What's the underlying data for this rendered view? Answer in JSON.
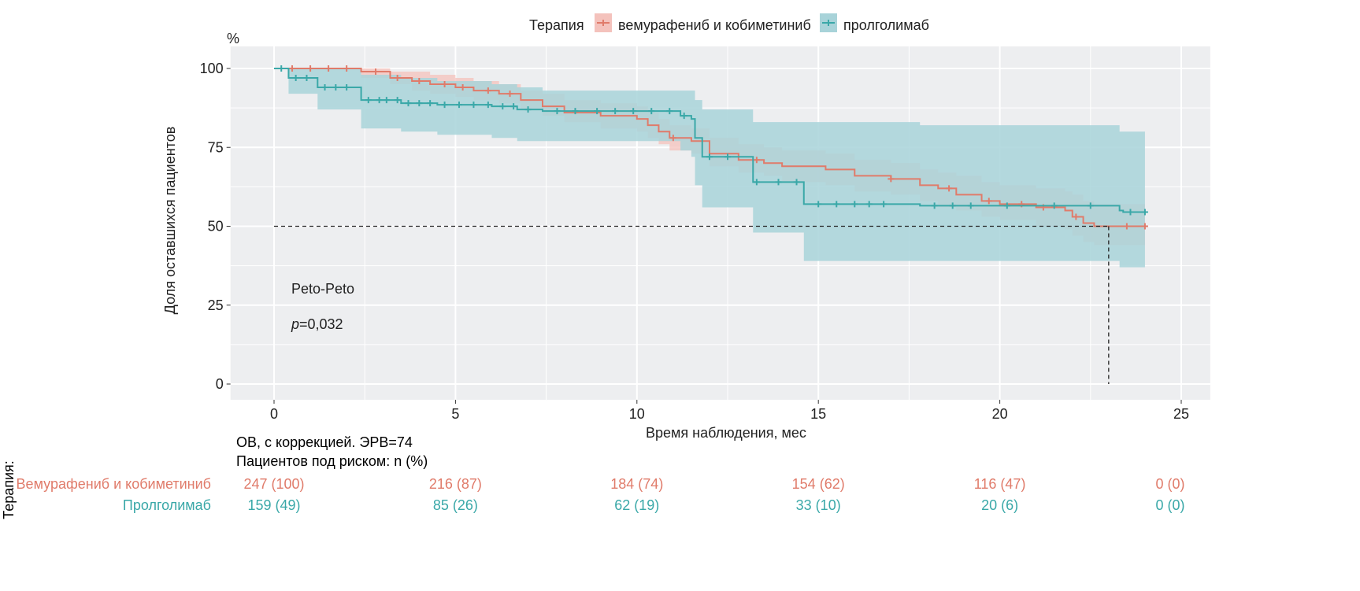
{
  "chart_data": {
    "type": "line",
    "subtype": "kaplan-meier",
    "xlabel": "Время наблюдения, мес",
    "ylabel": "Доля оставшихся пациентов",
    "yunit": "%",
    "xlim": [
      -1.2,
      25.8
    ],
    "ylim": [
      -5,
      107
    ],
    "xticks": [
      0,
      5,
      10,
      15,
      20,
      25
    ],
    "yticks": [
      0,
      25,
      50,
      75,
      100
    ],
    "grid": true,
    "legend": {
      "title": "Терапия",
      "placement": "top",
      "entries": [
        "вемурафениб и кобиметиниб",
        "пролголимаб"
      ]
    },
    "annotation": {
      "test": "Peto-Peto",
      "p_label": "p",
      "p_value": "=0,032"
    },
    "median_line": {
      "y": 50,
      "x": 23
    },
    "series": [
      {
        "name": "вемурафениб и кобиметиниб",
        "color": "#E07B6A",
        "band_color": "#F4C2BC",
        "x": [
          0,
          2.4,
          3.2,
          3.8,
          4.3,
          5,
          5.5,
          6.2,
          6.8,
          7.4,
          8,
          9,
          10,
          10.3,
          10.6,
          10.9,
          11.5,
          12,
          12.8,
          13.5,
          14,
          15.2,
          16,
          17,
          17.8,
          18.3,
          18.8,
          19.5,
          20,
          21,
          21.8,
          22,
          22.3,
          22.6,
          24
        ],
        "y": [
          100,
          99,
          97,
          96,
          95,
          94,
          93,
          92,
          90,
          88,
          86,
          85,
          84,
          82,
          80,
          78,
          77,
          73,
          71,
          70,
          69,
          68,
          66,
          65,
          63,
          62,
          60,
          58,
          57,
          56,
          55,
          53,
          51,
          50,
          50
        ],
        "lower": [
          100,
          97,
          95,
          93,
          92,
          91,
          90,
          89,
          87,
          85,
          83,
          81,
          80,
          78,
          76,
          74,
          73,
          69,
          67,
          66,
          64,
          63,
          61,
          60,
          58,
          56,
          55,
          53,
          52,
          50,
          49,
          47,
          45,
          44,
          44
        ],
        "upper": [
          100,
          100,
          99,
          99,
          98,
          97,
          96,
          95,
          93,
          92,
          90,
          89,
          88,
          86,
          84,
          82,
          81,
          78,
          76,
          75,
          74,
          73,
          71,
          70,
          68,
          67,
          66,
          64,
          63,
          62,
          61,
          60,
          58,
          57,
          57
        ],
        "censor": [
          0.5,
          1,
          1.5,
          2,
          2.8,
          3.4,
          4,
          4.7,
          5.2,
          5.9,
          6.5,
          11,
          13.3,
          17,
          18.6,
          19.7,
          20.6,
          21.2,
          22.1,
          23.5,
          24
        ]
      },
      {
        "name": "пролголимаб",
        "color": "#3AA8A8",
        "band_color": "#A8D3D9",
        "x": [
          0,
          0.4,
          1.2,
          2.4,
          3.5,
          4.5,
          6,
          6.7,
          7.4,
          11.2,
          11.5,
          11.6,
          11.8,
          13.2,
          14.6,
          17.8,
          23,
          23.3,
          23.4,
          24
        ],
        "y": [
          100,
          97,
          94,
          90,
          89,
          88.5,
          88,
          87,
          86.5,
          85,
          84,
          78,
          72,
          64,
          57,
          56.5,
          56.5,
          55,
          54.5,
          54.5
        ],
        "lower": [
          100,
          92,
          87,
          81,
          80,
          79,
          78,
          77,
          77,
          74,
          72,
          63,
          56,
          48,
          39,
          39,
          39,
          37,
          37,
          37
        ],
        "upper": [
          100,
          100,
          100,
          98,
          97,
          96,
          95,
          94,
          93,
          93,
          93,
          90,
          87,
          83,
          83,
          82,
          82,
          80,
          80,
          80
        ],
        "censor": [
          0.2,
          0.6,
          0.9,
          1.4,
          1.7,
          2.0,
          2.6,
          2.9,
          3.1,
          3.4,
          3.7,
          4.0,
          4.3,
          4.7,
          5.1,
          5.5,
          5.9,
          6.3,
          6.6,
          7,
          7.8,
          8.3,
          8.9,
          9.4,
          9.9,
          10.4,
          10.9,
          11.3,
          12,
          12.5,
          13.3,
          13.9,
          14.4,
          15,
          15.5,
          16,
          16.4,
          16.8,
          18.2,
          18.7,
          19.2,
          20.2,
          21.5,
          22.5,
          23.6,
          24
        ]
      }
    ]
  },
  "risk_table": {
    "title": "ОВ, с коррекцией. ЭРВ=74",
    "subtitle": "Пациентов под риском: n (%)",
    "strata_label": "Терапия:",
    "times": [
      0,
      5,
      10,
      15,
      20,
      25
    ],
    "rows": [
      {
        "label": "Вемурафениб и кобиметиниб",
        "color": "#E07B6A",
        "values": [
          "247 (100)",
          "216 (87)",
          "184 (74)",
          "154 (62)",
          "116 (47)",
          "0 (0)"
        ]
      },
      {
        "label": "Пролголимаб",
        "color": "#3AA8A8",
        "values": [
          "159 (49)",
          "85 (26)",
          "62 (19)",
          "33 (10)",
          "20 (6)",
          "0 (0)"
        ]
      }
    ]
  }
}
